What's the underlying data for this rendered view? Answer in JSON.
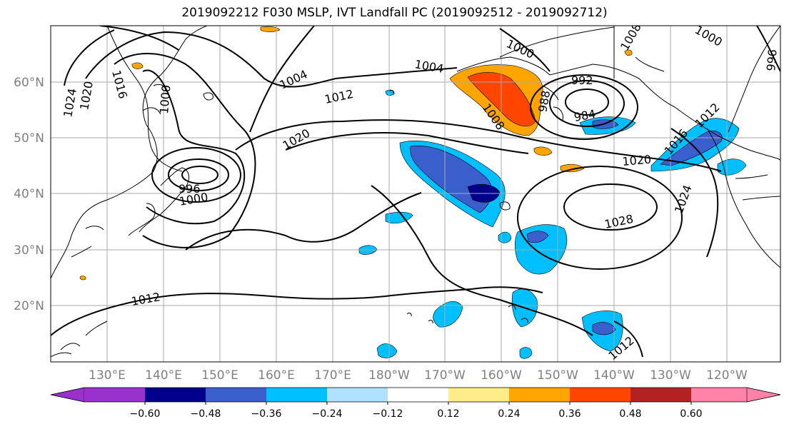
{
  "title": "2019092212 F030 MSLP, IVT Landfall PC (2019092512 - 2019092712)",
  "lat_labels": [
    "60°N",
    "50°N",
    "40°N",
    "30°N",
    "20°N"
  ],
  "lon_labels": [
    "130°E",
    "140°E",
    "150°E",
    "160°E",
    "170°E",
    "180°W",
    "170°W",
    "160°W",
    "150°W",
    "140°W",
    "130°W",
    "120°W"
  ],
  "isobar_labels": [
    "1024",
    "1020",
    "1016",
    "1000",
    "996",
    "1000",
    "1004",
    "1004",
    "1012",
    "1020",
    "1012",
    "1000",
    "992",
    "988",
    "984",
    "1008",
    "1020",
    "1016",
    "1024",
    "1028",
    "1012",
    "1008",
    "1012",
    "1000",
    "996"
  ],
  "colorbar": {
    "colors": [
      "#9932cc",
      "#00008b",
      "#3a5fcd",
      "#00bfff",
      "#b0e2ff",
      "#ffffff",
      "#ffffff",
      "#ffec8b",
      "#ffa500",
      "#ff4500",
      "#b22222",
      "#ff82ab"
    ],
    "ticks": [
      "−0.60",
      "−0.48",
      "−0.36",
      "−0.24",
      "−0.12",
      "0.12",
      "0.24",
      "0.36",
      "0.48",
      "0.60"
    ]
  },
  "colors": {
    "frame": "#000000",
    "grid": "#aaaaaa",
    "axis_label": "#808080"
  }
}
